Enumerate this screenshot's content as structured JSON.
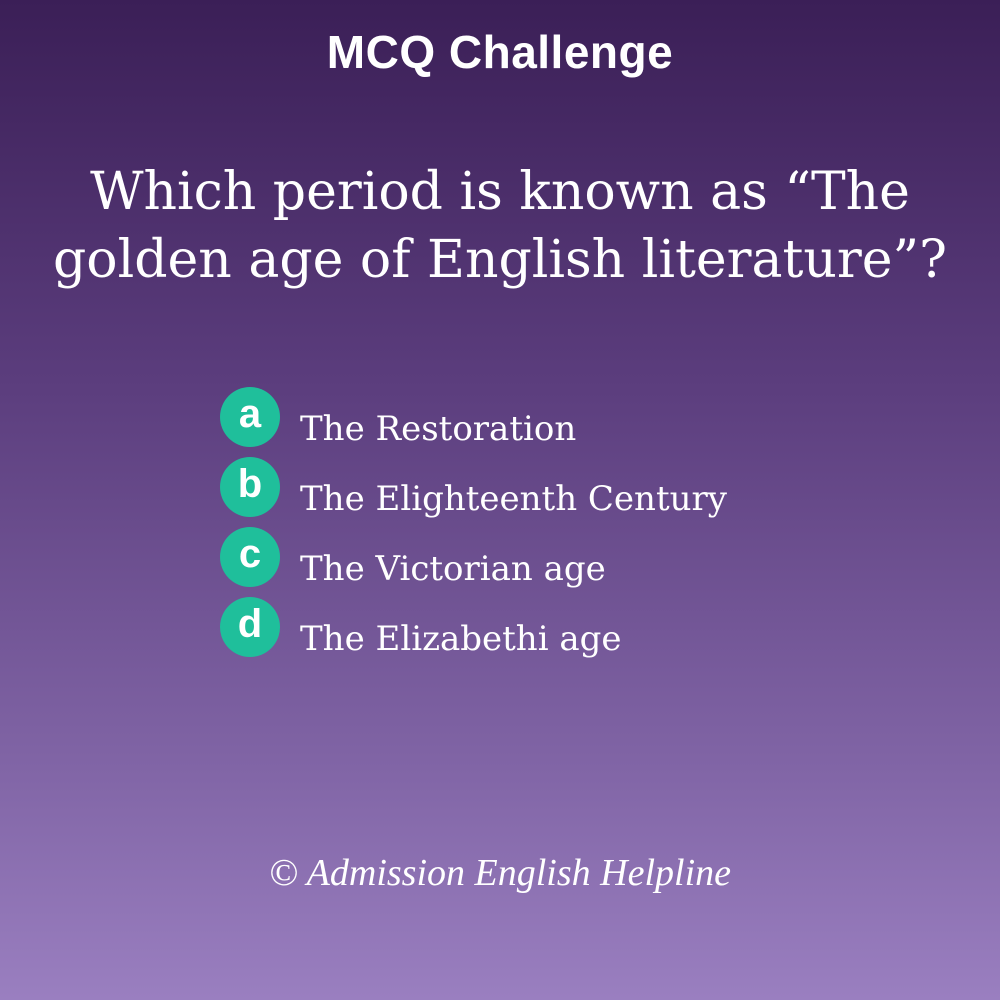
{
  "header": {
    "title": "MCQ Challenge"
  },
  "question": {
    "line1": "Which period is known as “The",
    "line2": "golden age of English literature”?"
  },
  "options": [
    {
      "letter": "a",
      "text": "The Restoration"
    },
    {
      "letter": "b",
      "text": "The Elighteenth Century"
    },
    {
      "letter": "c",
      "text": "The Victorian age"
    },
    {
      "letter": "d",
      "text": "The Elizabethi age"
    }
  ],
  "footer": {
    "credit": "© Admission English Helpline"
  },
  "colors": {
    "badge": "#1fbf9b",
    "background_top": "#3b1f57",
    "background_bottom": "#9a7fc0",
    "text": "#ffffff"
  }
}
